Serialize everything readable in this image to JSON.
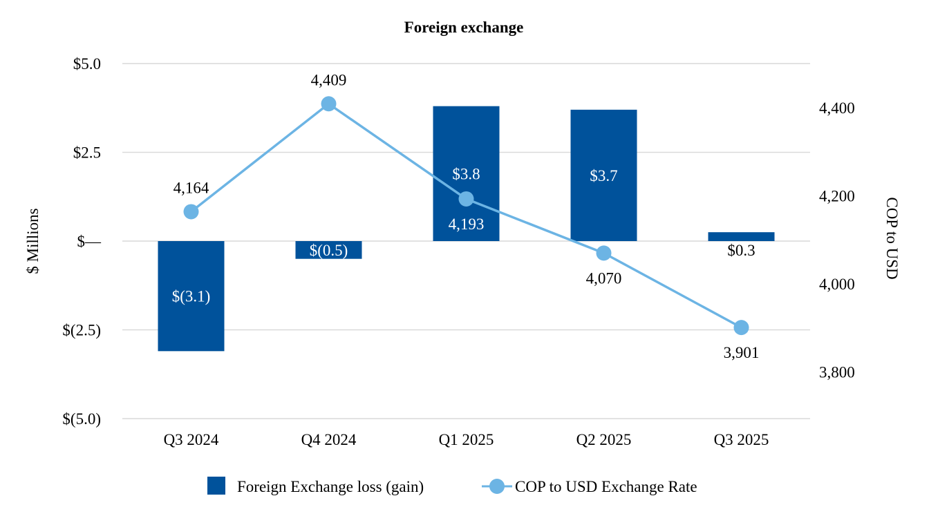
{
  "chart_data": {
    "type": "bar",
    "title": "Foreign exchange",
    "categories": [
      "Q3 2024",
      "Q4 2024",
      "Q1 2025",
      "Q2 2025",
      "Q3 2025"
    ],
    "ylabel": "$ Millions",
    "y2label": "COP to USD",
    "ylim": [
      -5.0,
      5.0
    ],
    "y2lim": [
      3700,
      4500
    ],
    "y_ticks": [
      {
        "value": 5.0,
        "label": "$5.0"
      },
      {
        "value": 2.5,
        "label": "$2.5"
      },
      {
        "value": 0,
        "label": "$—"
      },
      {
        "value": -2.5,
        "label": "$(2.5)"
      },
      {
        "value": -5.0,
        "label": "$(5.0)"
      }
    ],
    "y2_ticks": [
      {
        "value": 4400,
        "label": "4,400"
      },
      {
        "value": 4200,
        "label": "4,200"
      },
      {
        "value": 4000,
        "label": "4,000"
      },
      {
        "value": 3800,
        "label": "3,800"
      }
    ],
    "grid": true,
    "legend_position": "bottom",
    "series": [
      {
        "name": "Foreign Exchange loss (gain)",
        "kind": "bar",
        "axis": "left",
        "color": "#00529b",
        "values": [
          -3.1,
          -0.5,
          3.8,
          3.7,
          0.25
        ],
        "labels": [
          "$(3.1)",
          "$(0.5)",
          "$3.8",
          "$3.7",
          "$0.3"
        ],
        "label_placement": [
          "inside",
          "inside",
          "inside",
          "inside",
          "below"
        ]
      },
      {
        "name": "COP to USD Exchange Rate",
        "kind": "line",
        "axis": "right",
        "color": "#6cb4e4",
        "values": [
          4164,
          4409,
          4193,
          4070,
          3901
        ],
        "labels": [
          "4,164",
          "4,409",
          "4,193",
          "4,070",
          "3,901"
        ],
        "label_placement": [
          "above",
          "above",
          "below",
          "below",
          "below"
        ]
      }
    ]
  }
}
